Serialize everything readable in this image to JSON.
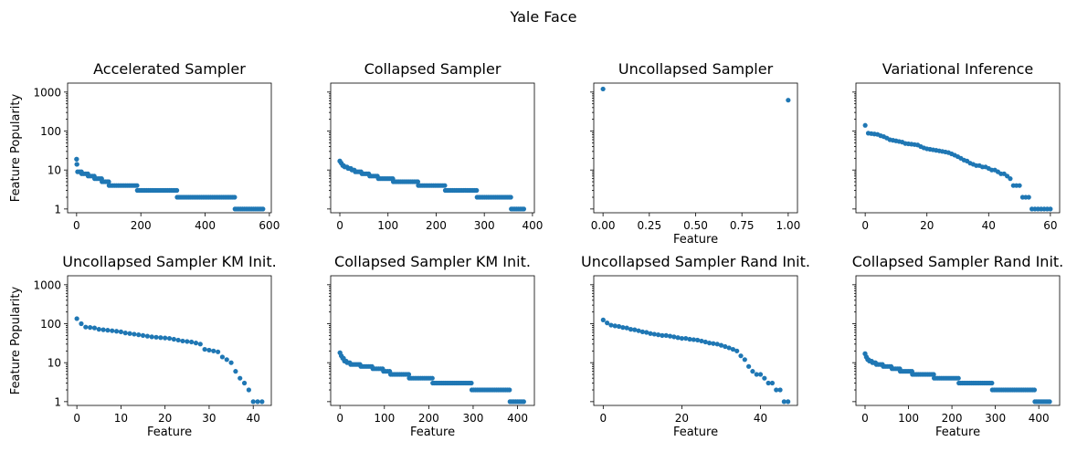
{
  "figure": {
    "title": "Yale Face",
    "marker_color": "#1f77b4"
  },
  "chart_data": [
    {
      "type": "scatter",
      "title": "Accelerated Sampler",
      "xlabel": "",
      "ylabel": "Feature Popularity",
      "yscale": "log",
      "xlim": [
        -28,
        606
      ],
      "ylim": [
        0.8,
        1700
      ],
      "xticks": [
        0,
        200,
        400,
        600
      ],
      "xtick_labels": [
        "0",
        "200",
        "400",
        "600"
      ],
      "yticks": [
        1,
        10,
        100,
        1000
      ],
      "ytick_labels": [
        "1",
        "10",
        "100",
        "1000"
      ],
      "runs": [
        {
          "x0": 0,
          "x1": 0,
          "y": 19
        },
        {
          "x0": 1,
          "x1": 1,
          "y": 14
        },
        {
          "x0": 3,
          "x1": 15,
          "y": 9
        },
        {
          "x0": 16,
          "x1": 35,
          "y": 8
        },
        {
          "x0": 36,
          "x1": 55,
          "y": 7
        },
        {
          "x0": 56,
          "x1": 78,
          "y": 6
        },
        {
          "x0": 79,
          "x1": 100,
          "y": 5
        },
        {
          "x0": 101,
          "x1": 188,
          "y": 4
        },
        {
          "x0": 189,
          "x1": 312,
          "y": 3
        },
        {
          "x0": 313,
          "x1": 492,
          "y": 2
        },
        {
          "x0": 493,
          "x1": 580,
          "y": 1
        }
      ]
    },
    {
      "type": "scatter",
      "title": "Collapsed Sampler",
      "xlabel": "",
      "ylabel": "",
      "yscale": "log",
      "xlim": [
        -19,
        404
      ],
      "ylim": [
        0.8,
        1700
      ],
      "xticks": [
        0,
        100,
        200,
        300,
        400
      ],
      "xtick_labels": [
        "0",
        "100",
        "200",
        "300",
        "400"
      ],
      "yticks": [
        1,
        10,
        100,
        1000
      ],
      "ytick_labels": [],
      "runs": [
        {
          "x0": 0,
          "x1": 0,
          "y": 17
        },
        {
          "x0": 3,
          "x1": 3,
          "y": 15
        },
        {
          "x0": 6,
          "x1": 8,
          "y": 13
        },
        {
          "x0": 10,
          "x1": 15,
          "y": 12
        },
        {
          "x0": 17,
          "x1": 23,
          "y": 11
        },
        {
          "x0": 25,
          "x1": 30,
          "y": 10
        },
        {
          "x0": 32,
          "x1": 44,
          "y": 9
        },
        {
          "x0": 46,
          "x1": 60,
          "y": 8
        },
        {
          "x0": 62,
          "x1": 78,
          "y": 7
        },
        {
          "x0": 80,
          "x1": 110,
          "y": 6
        },
        {
          "x0": 111,
          "x1": 162,
          "y": 5
        },
        {
          "x0": 163,
          "x1": 218,
          "y": 4
        },
        {
          "x0": 219,
          "x1": 284,
          "y": 3
        },
        {
          "x0": 285,
          "x1": 355,
          "y": 2
        },
        {
          "x0": 356,
          "x1": 382,
          "y": 1
        }
      ]
    },
    {
      "type": "scatter",
      "title": "Uncollapsed Sampler",
      "xlabel": "Feature",
      "ylabel": "",
      "yscale": "log",
      "xlim": [
        -0.05,
        1.05
      ],
      "ylim": [
        0.8,
        1700
      ],
      "xticks": [
        0,
        0.25,
        0.5,
        0.75,
        1
      ],
      "xtick_labels": [
        "0.00",
        "0.25",
        "0.50",
        "0.75",
        "1.00"
      ],
      "yticks": [
        1,
        10,
        100,
        1000
      ],
      "ytick_labels": [],
      "points": [
        [
          0,
          1200
        ],
        [
          1,
          620
        ]
      ]
    },
    {
      "type": "scatter",
      "title": "Variational Inference",
      "xlabel": "",
      "ylabel": "",
      "yscale": "log",
      "xlim": [
        -3,
        63
      ],
      "ylim": [
        0.8,
        1700
      ],
      "xticks": [
        0,
        20,
        40,
        60
      ],
      "xtick_labels": [
        "0",
        "20",
        "40",
        "60"
      ],
      "yticks": [
        1,
        10,
        100,
        1000
      ],
      "ytick_labels": [],
      "points": [
        [
          0,
          140
        ],
        [
          1,
          88
        ],
        [
          2,
          86
        ],
        [
          3,
          84
        ],
        [
          4,
          82
        ],
        [
          5,
          76
        ],
        [
          6,
          72
        ],
        [
          7,
          66
        ],
        [
          8,
          60
        ],
        [
          9,
          58
        ],
        [
          10,
          56
        ],
        [
          11,
          54
        ],
        [
          12,
          52
        ],
        [
          13,
          48
        ],
        [
          14,
          47
        ],
        [
          15,
          46
        ],
        [
          16,
          45
        ],
        [
          17,
          44
        ],
        [
          18,
          40
        ],
        [
          19,
          37
        ],
        [
          20,
          35
        ],
        [
          21,
          34
        ],
        [
          22,
          33
        ],
        [
          23,
          32
        ],
        [
          24,
          31
        ],
        [
          25,
          30
        ],
        [
          26,
          29
        ],
        [
          27,
          28
        ],
        [
          28,
          26
        ],
        [
          29,
          24
        ],
        [
          30,
          22
        ],
        [
          31,
          20
        ],
        [
          32,
          18
        ],
        [
          33,
          17
        ],
        [
          34,
          15
        ],
        [
          35,
          14
        ],
        [
          36,
          13
        ],
        [
          37,
          13
        ],
        [
          38,
          12
        ],
        [
          39,
          12
        ],
        [
          40,
          11
        ],
        [
          41,
          10
        ],
        [
          42,
          10
        ],
        [
          43,
          9
        ],
        [
          44,
          8
        ],
        [
          45,
          8
        ],
        [
          46,
          7
        ],
        [
          47,
          6
        ],
        [
          48,
          4
        ],
        [
          49,
          4
        ],
        [
          50,
          4
        ],
        [
          51,
          2
        ],
        [
          52,
          2
        ],
        [
          53,
          2
        ],
        [
          54,
          1
        ],
        [
          55,
          1
        ],
        [
          56,
          1
        ],
        [
          57,
          1
        ],
        [
          58,
          1
        ],
        [
          59,
          1
        ],
        [
          60,
          1
        ]
      ]
    },
    {
      "type": "scatter",
      "title": "Uncollapsed Sampler KM Init.",
      "xlabel": "Feature",
      "ylabel": "Feature Popularity",
      "yscale": "log",
      "xlim": [
        -2.1,
        44.1
      ],
      "ylim": [
        0.8,
        1700
      ],
      "xticks": [
        0,
        10,
        20,
        30,
        40
      ],
      "xtick_labels": [
        "0",
        "10",
        "20",
        "30",
        "40"
      ],
      "yticks": [
        1,
        10,
        100,
        1000
      ],
      "ytick_labels": [
        "1",
        "10",
        "100",
        "1000"
      ],
      "points": [
        [
          0,
          135
        ],
        [
          1,
          100
        ],
        [
          2,
          82
        ],
        [
          3,
          80
        ],
        [
          4,
          78
        ],
        [
          5,
          72
        ],
        [
          6,
          70
        ],
        [
          7,
          68
        ],
        [
          8,
          66
        ],
        [
          9,
          64
        ],
        [
          10,
          62
        ],
        [
          11,
          58
        ],
        [
          12,
          56
        ],
        [
          13,
          54
        ],
        [
          14,
          52
        ],
        [
          15,
          50
        ],
        [
          16,
          48
        ],
        [
          17,
          46
        ],
        [
          18,
          45
        ],
        [
          19,
          44
        ],
        [
          20,
          43
        ],
        [
          21,
          42
        ],
        [
          22,
          40
        ],
        [
          23,
          38
        ],
        [
          24,
          36
        ],
        [
          25,
          35
        ],
        [
          26,
          34
        ],
        [
          27,
          32
        ],
        [
          28,
          30
        ],
        [
          29,
          22
        ],
        [
          30,
          21
        ],
        [
          31,
          20
        ],
        [
          32,
          19
        ],
        [
          33,
          14
        ],
        [
          34,
          12
        ],
        [
          35,
          10
        ],
        [
          36,
          6
        ],
        [
          37,
          4
        ],
        [
          38,
          3
        ],
        [
          39,
          2
        ],
        [
          40,
          1
        ],
        [
          41,
          1
        ],
        [
          42,
          1
        ]
      ]
    },
    {
      "type": "scatter",
      "title": "Collapsed Sampler KM Init.",
      "xlabel": "Feature",
      "ylabel": "",
      "yscale": "log",
      "xlim": [
        -21,
        438
      ],
      "ylim": [
        0.8,
        1700
      ],
      "xticks": [
        0,
        100,
        200,
        300,
        400
      ],
      "xtick_labels": [
        "0",
        "100",
        "200",
        "300",
        "400"
      ],
      "yticks": [
        1,
        10,
        100,
        1000
      ],
      "ytick_labels": [],
      "runs": [
        {
          "x0": 0,
          "x1": 0,
          "y": 18
        },
        {
          "x0": 3,
          "x1": 3,
          "y": 15
        },
        {
          "x0": 6,
          "x1": 8,
          "y": 13
        },
        {
          "x0": 10,
          "x1": 14,
          "y": 11
        },
        {
          "x0": 16,
          "x1": 22,
          "y": 10
        },
        {
          "x0": 24,
          "x1": 45,
          "y": 9
        },
        {
          "x0": 47,
          "x1": 72,
          "y": 8
        },
        {
          "x0": 74,
          "x1": 96,
          "y": 7
        },
        {
          "x0": 98,
          "x1": 112,
          "y": 6
        },
        {
          "x0": 114,
          "x1": 155,
          "y": 5
        },
        {
          "x0": 156,
          "x1": 208,
          "y": 4
        },
        {
          "x0": 209,
          "x1": 296,
          "y": 3
        },
        {
          "x0": 297,
          "x1": 382,
          "y": 2
        },
        {
          "x0": 383,
          "x1": 414,
          "y": 1
        }
      ]
    },
    {
      "type": "scatter",
      "title": "Uncollapsed Sampler Rand Init.",
      "xlabel": "Feature",
      "ylabel": "",
      "yscale": "log",
      "xlim": [
        -2.4,
        49.4
      ],
      "ylim": [
        0.8,
        1700
      ],
      "xticks": [
        0,
        20,
        40
      ],
      "xtick_labels": [
        "0",
        "20",
        "40"
      ],
      "yticks": [
        1,
        10,
        100,
        1000
      ],
      "ytick_labels": [],
      "points": [
        [
          0,
          125
        ],
        [
          1,
          105
        ],
        [
          2,
          92
        ],
        [
          3,
          88
        ],
        [
          4,
          85
        ],
        [
          5,
          80
        ],
        [
          6,
          78
        ],
        [
          7,
          72
        ],
        [
          8,
          70
        ],
        [
          9,
          66
        ],
        [
          10,
          62
        ],
        [
          11,
          60
        ],
        [
          12,
          56
        ],
        [
          13,
          54
        ],
        [
          14,
          52
        ],
        [
          15,
          50
        ],
        [
          16,
          50
        ],
        [
          17,
          48
        ],
        [
          18,
          46
        ],
        [
          19,
          44
        ],
        [
          20,
          42
        ],
        [
          21,
          42
        ],
        [
          22,
          40
        ],
        [
          23,
          39
        ],
        [
          24,
          38
        ],
        [
          25,
          36
        ],
        [
          26,
          34
        ],
        [
          27,
          32
        ],
        [
          28,
          31
        ],
        [
          29,
          30
        ],
        [
          30,
          28
        ],
        [
          31,
          26
        ],
        [
          32,
          24
        ],
        [
          33,
          22
        ],
        [
          34,
          20
        ],
        [
          35,
          15
        ],
        [
          36,
          12
        ],
        [
          37,
          8
        ],
        [
          38,
          6
        ],
        [
          39,
          5
        ],
        [
          40,
          5
        ],
        [
          41,
          4
        ],
        [
          42,
          3
        ],
        [
          43,
          3
        ],
        [
          44,
          2
        ],
        [
          45,
          2
        ],
        [
          46,
          1
        ],
        [
          47,
          1
        ]
      ]
    },
    {
      "type": "scatter",
      "title": "Collapsed Sampler Rand Init.",
      "xlabel": "Feature",
      "ylabel": "",
      "yscale": "log",
      "xlim": [
        -21,
        448
      ],
      "ylim": [
        0.8,
        1700
      ],
      "xticks": [
        0,
        100,
        200,
        300,
        400
      ],
      "xtick_labels": [
        "0",
        "100",
        "200",
        "300",
        "400"
      ],
      "yticks": [
        1,
        10,
        100,
        1000
      ],
      "ytick_labels": [],
      "runs": [
        {
          "x0": 0,
          "x1": 0,
          "y": 17
        },
        {
          "x0": 3,
          "x1": 3,
          "y": 14
        },
        {
          "x0": 6,
          "x1": 8,
          "y": 12
        },
        {
          "x0": 10,
          "x1": 15,
          "y": 11
        },
        {
          "x0": 17,
          "x1": 24,
          "y": 10
        },
        {
          "x0": 26,
          "x1": 40,
          "y": 9
        },
        {
          "x0": 42,
          "x1": 60,
          "y": 8
        },
        {
          "x0": 62,
          "x1": 80,
          "y": 7
        },
        {
          "x0": 81,
          "x1": 108,
          "y": 6
        },
        {
          "x0": 109,
          "x1": 158,
          "y": 5
        },
        {
          "x0": 159,
          "x1": 215,
          "y": 4
        },
        {
          "x0": 216,
          "x1": 292,
          "y": 3
        },
        {
          "x0": 293,
          "x1": 390,
          "y": 2
        },
        {
          "x0": 391,
          "x1": 425,
          "y": 1
        }
      ]
    }
  ]
}
